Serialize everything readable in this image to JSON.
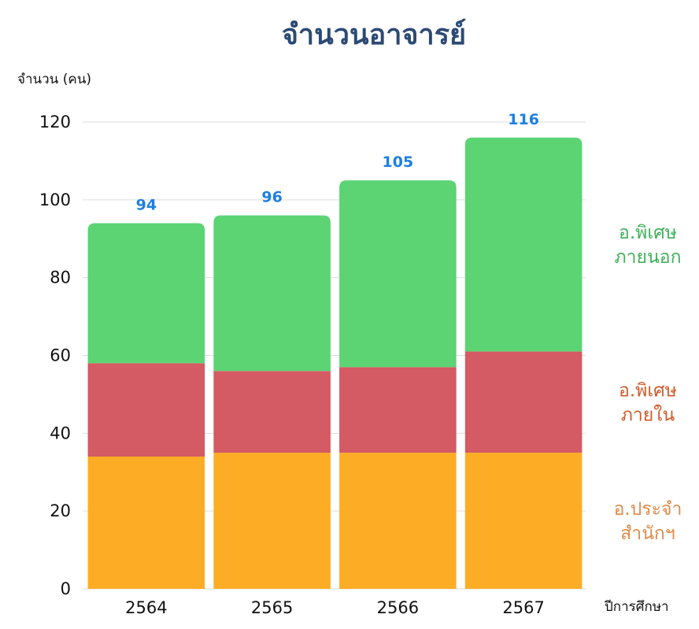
{
  "chart_data": {
    "type": "bar",
    "stacked": true,
    "title": "จำนวนอาจารย์",
    "ylabel": "จำนวน (คน)",
    "xlabel": "ปีการศึกษา",
    "categories": [
      "2564",
      "2565",
      "2566",
      "2567"
    ],
    "ylim": [
      0,
      120
    ],
    "yticks": [
      0,
      20,
      40,
      60,
      80,
      100,
      120
    ],
    "grid": true,
    "series": [
      {
        "name": "อ.ประจำ สำนักฯ",
        "legend_lines": [
          "อ.ประจำ",
          "สำนักฯ"
        ],
        "values": [
          34,
          35,
          35,
          35
        ],
        "color": "#fdad25",
        "label_color": "#e08a4a"
      },
      {
        "name": "อ.พิเศษ ภายใน",
        "legend_lines": [
          "อ.พิเศษ",
          "ภายใน"
        ],
        "values": [
          24,
          21,
          22,
          26
        ],
        "color": "#d45a63",
        "label_color": "#cf5a2a"
      },
      {
        "name": "อ.พิเศษ ภายนอก",
        "legend_lines": [
          "อ.พิเศษ",
          "ภายนอก"
        ],
        "values": [
          36,
          40,
          48,
          55
        ],
        "color": "#5cd474",
        "label_color": "#3fb15a"
      }
    ],
    "totals": [
      94,
      96,
      105,
      116
    ],
    "legend_position": "right",
    "totals_color": "#1e7fe0",
    "title_color": "#2c4a75"
  }
}
